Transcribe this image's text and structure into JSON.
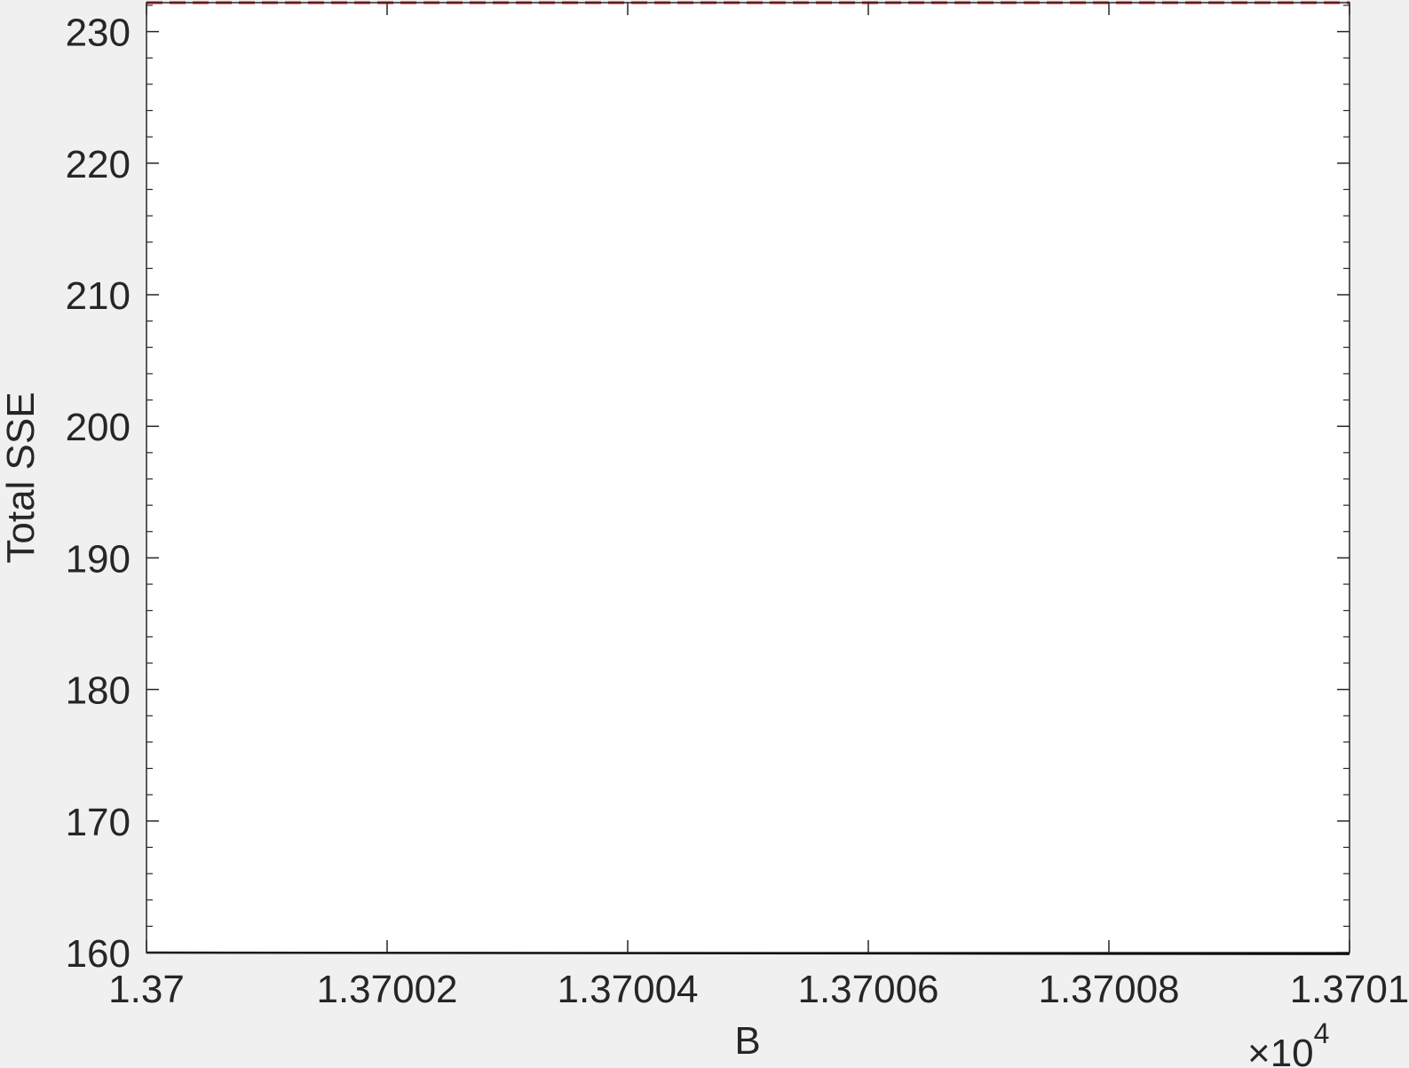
{
  "chart_data": {
    "type": "line",
    "xlabel": "B",
    "ylabel": "Total SSE",
    "x_exponent_base": "×10",
    "x_exponent_power": "4",
    "xlim": [
      1.37,
      1.3701
    ],
    "ylim": [
      160,
      232.2
    ],
    "x_ticks": [
      1.37,
      1.37002,
      1.37004,
      1.37006,
      1.37008,
      1.3701
    ],
    "x_tick_labels": [
      "1.37",
      "1.37002",
      "1.37004",
      "1.37006",
      "1.37008",
      "1.3701"
    ],
    "y_ticks": [
      160,
      170,
      180,
      190,
      200,
      210,
      220,
      230
    ],
    "y_tick_labels": [
      "160",
      "170",
      "180",
      "190",
      "200",
      "210",
      "220",
      "230"
    ],
    "grid": false,
    "series": [
      {
        "color": "#000000",
        "style": "solid",
        "x": [
          1.37,
          1.3701
        ],
        "y": [
          160.0,
          159.9
        ]
      },
      {
        "color": "#ff0000",
        "style": "dashed",
        "x": [
          1.37,
          1.3701
        ],
        "y": [
          232.2,
          232.2
        ]
      }
    ]
  }
}
